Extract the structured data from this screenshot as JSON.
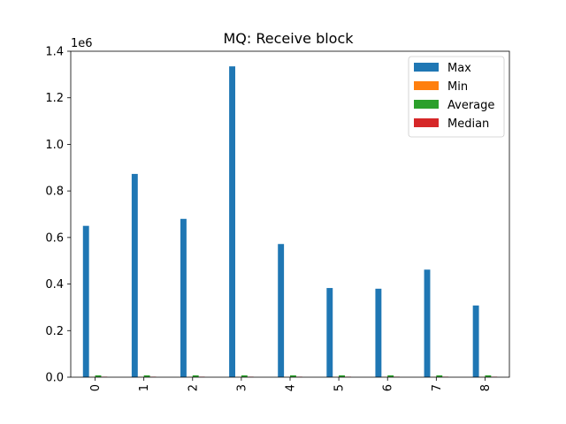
{
  "chart_data": {
    "type": "bar",
    "title": "MQ: Receive block",
    "xlabel": "",
    "ylabel": "",
    "y_offset_label": "1e6",
    "y_multiplier": 1000000,
    "ylim": [
      0,
      1.4
    ],
    "yticks": [
      "0.0",
      "0.2",
      "0.4",
      "0.6",
      "0.8",
      "1.0",
      "1.2",
      "1.4"
    ],
    "categories": [
      "0",
      "1",
      "2",
      "3",
      "4",
      "5",
      "6",
      "7",
      "8"
    ],
    "series": [
      {
        "name": "Max",
        "color": "#1f77b4",
        "values": [
          650000,
          873000,
          680000,
          1335000,
          572000,
          383000,
          380000,
          462000,
          308000
        ]
      },
      {
        "name": "Min",
        "color": "#ff7f0e",
        "values": [
          1000,
          1000,
          1000,
          1000,
          1000,
          1000,
          1000,
          1000,
          1000
        ]
      },
      {
        "name": "Average",
        "color": "#2ca02c",
        "values": [
          8000,
          8000,
          8000,
          8000,
          8000,
          8000,
          8000,
          8000,
          8000
        ]
      },
      {
        "name": "Median",
        "color": "#d62728",
        "values": [
          2000,
          2000,
          2000,
          2000,
          2000,
          2000,
          2000,
          2000,
          2000
        ]
      }
    ],
    "legend_position": "top-right",
    "grid": false
  }
}
